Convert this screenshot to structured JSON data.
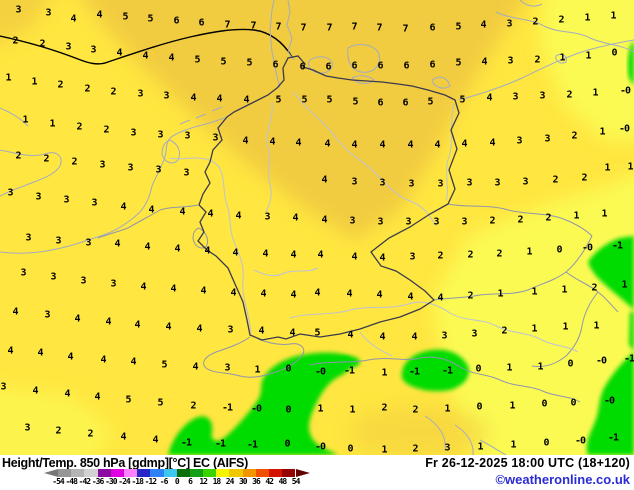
{
  "header": {
    "product": "Height/Temp. 850 hPa [gdmp][°C] EC (AIFS)",
    "valid": "Fr 26-12-2025 18:00 UTC (18+120)",
    "credit": "©weatheronline.co.uk"
  },
  "legend": {
    "labels": [
      "-54",
      "-48",
      "-42",
      "-36",
      "-30",
      "-24",
      "-18",
      "-12",
      "-6",
      "0",
      "6",
      "12",
      "18",
      "24",
      "30",
      "36",
      "42",
      "48",
      "54"
    ],
    "segment_colors": [
      "#969696",
      "#B4B4B4",
      "#D2D2D2",
      "#8C0AA0",
      "#E100E1",
      "#FF82FF",
      "#2828C8",
      "#2E82F5",
      "#3CC8F0",
      "#0A6E0A",
      "#14A014",
      "#3CD200",
      "#F5F500",
      "#F0C800",
      "#F09600",
      "#F05000",
      "#D21400",
      "#960000"
    ],
    "left_arrow_color": "#787878",
    "right_arrow_color": "#640000"
  },
  "map": {
    "palette": {
      "base_yellow": "#FFE640",
      "gold": "#F2CC3F",
      "pale_yellow": "#FBFA52",
      "green": "#00DC00",
      "border_country": "#8F96AD",
      "border_germany": "#3A3A4E",
      "coast": "#A3ABC2",
      "river": "#BCC3D6",
      "contour_black": "#000000"
    },
    "values": [
      [
        18,
        10,
        "3"
      ],
      [
        48,
        13,
        "3"
      ],
      [
        73,
        19,
        "4"
      ],
      [
        99,
        15,
        "4"
      ],
      [
        125,
        17,
        "5"
      ],
      [
        150,
        19,
        "5"
      ],
      [
        176,
        21,
        "6"
      ],
      [
        201,
        23,
        "6"
      ],
      [
        227,
        25,
        "7"
      ],
      [
        253,
        26,
        "7"
      ],
      [
        278,
        27,
        "7"
      ],
      [
        303,
        28,
        "7"
      ],
      [
        329,
        28,
        "7"
      ],
      [
        354,
        27,
        "7"
      ],
      [
        379,
        28,
        "7"
      ],
      [
        405,
        29,
        "7"
      ],
      [
        432,
        28,
        "6"
      ],
      [
        458,
        27,
        "5"
      ],
      [
        483,
        25,
        "4"
      ],
      [
        509,
        24,
        "3"
      ],
      [
        535,
        22,
        "2"
      ],
      [
        561,
        20,
        "2"
      ],
      [
        587,
        18,
        "1"
      ],
      [
        613,
        16,
        "1"
      ],
      [
        15,
        41,
        "2"
      ],
      [
        42,
        44,
        "2"
      ],
      [
        68,
        47,
        "3"
      ],
      [
        93,
        50,
        "3"
      ],
      [
        119,
        53,
        "4"
      ],
      [
        145,
        56,
        "4"
      ],
      [
        171,
        58,
        "4"
      ],
      [
        197,
        60,
        "5"
      ],
      [
        223,
        62,
        "5"
      ],
      [
        249,
        63,
        "5"
      ],
      [
        275,
        65,
        "6"
      ],
      [
        302,
        67,
        "6"
      ],
      [
        328,
        67,
        "6"
      ],
      [
        354,
        66,
        "6"
      ],
      [
        380,
        66,
        "6"
      ],
      [
        406,
        66,
        "6"
      ],
      [
        432,
        65,
        "6"
      ],
      [
        458,
        63,
        "5"
      ],
      [
        484,
        62,
        "4"
      ],
      [
        510,
        61,
        "3"
      ],
      [
        537,
        60,
        "2"
      ],
      [
        562,
        58,
        "1"
      ],
      [
        588,
        56,
        "1"
      ],
      [
        614,
        53,
        "0"
      ],
      [
        8,
        78,
        "1"
      ],
      [
        34,
        82,
        "1"
      ],
      [
        60,
        85,
        "2"
      ],
      [
        87,
        89,
        "2"
      ],
      [
        113,
        92,
        "2"
      ],
      [
        140,
        94,
        "3"
      ],
      [
        166,
        96,
        "3"
      ],
      [
        193,
        98,
        "4"
      ],
      [
        219,
        99,
        "4"
      ],
      [
        246,
        100,
        "4"
      ],
      [
        278,
        100,
        "5"
      ],
      [
        304,
        100,
        "5"
      ],
      [
        329,
        100,
        "5"
      ],
      [
        355,
        102,
        "5"
      ],
      [
        380,
        103,
        "6"
      ],
      [
        405,
        103,
        "6"
      ],
      [
        430,
        102,
        "5"
      ],
      [
        462,
        100,
        "5"
      ],
      [
        489,
        98,
        "4"
      ],
      [
        515,
        97,
        "3"
      ],
      [
        542,
        96,
        "3"
      ],
      [
        569,
        95,
        "2"
      ],
      [
        595,
        93,
        "1"
      ],
      [
        625,
        91,
        "-0"
      ],
      [
        25,
        120,
        "1"
      ],
      [
        52,
        124,
        "1"
      ],
      [
        79,
        127,
        "2"
      ],
      [
        106,
        130,
        "2"
      ],
      [
        133,
        133,
        "3"
      ],
      [
        160,
        135,
        "3"
      ],
      [
        187,
        136,
        "3"
      ],
      [
        215,
        138,
        "3"
      ],
      [
        245,
        141,
        "4"
      ],
      [
        272,
        142,
        "4"
      ],
      [
        298,
        143,
        "4"
      ],
      [
        327,
        144,
        "4"
      ],
      [
        354,
        145,
        "4"
      ],
      [
        382,
        145,
        "4"
      ],
      [
        410,
        145,
        "4"
      ],
      [
        437,
        145,
        "4"
      ],
      [
        464,
        144,
        "4"
      ],
      [
        492,
        143,
        "4"
      ],
      [
        519,
        141,
        "3"
      ],
      [
        547,
        139,
        "3"
      ],
      [
        574,
        136,
        "2"
      ],
      [
        602,
        132,
        "1"
      ],
      [
        624,
        129,
        "-0"
      ],
      [
        18,
        156,
        "2"
      ],
      [
        46,
        159,
        "2"
      ],
      [
        74,
        162,
        "2"
      ],
      [
        102,
        165,
        "3"
      ],
      [
        130,
        168,
        "3"
      ],
      [
        158,
        170,
        "3"
      ],
      [
        186,
        173,
        "3"
      ],
      [
        324,
        180,
        "4"
      ],
      [
        354,
        182,
        "3"
      ],
      [
        382,
        183,
        "3"
      ],
      [
        411,
        184,
        "3"
      ],
      [
        440,
        184,
        "3"
      ],
      [
        469,
        183,
        "3"
      ],
      [
        497,
        183,
        "3"
      ],
      [
        525,
        182,
        "3"
      ],
      [
        555,
        180,
        "2"
      ],
      [
        584,
        178,
        "2"
      ],
      [
        607,
        168,
        "1"
      ],
      [
        630,
        167,
        "1"
      ],
      [
        10,
        193,
        "3"
      ],
      [
        38,
        197,
        "3"
      ],
      [
        66,
        200,
        "3"
      ],
      [
        94,
        203,
        "3"
      ],
      [
        123,
        207,
        "4"
      ],
      [
        151,
        210,
        "4"
      ],
      [
        182,
        212,
        "4"
      ],
      [
        210,
        214,
        "4"
      ],
      [
        238,
        216,
        "4"
      ],
      [
        267,
        217,
        "3"
      ],
      [
        295,
        218,
        "4"
      ],
      [
        324,
        220,
        "4"
      ],
      [
        352,
        221,
        "3"
      ],
      [
        380,
        222,
        "3"
      ],
      [
        408,
        222,
        "3"
      ],
      [
        436,
        222,
        "3"
      ],
      [
        464,
        222,
        "3"
      ],
      [
        492,
        221,
        "2"
      ],
      [
        520,
        220,
        "2"
      ],
      [
        548,
        218,
        "2"
      ],
      [
        576,
        216,
        "1"
      ],
      [
        604,
        214,
        "1"
      ],
      [
        28,
        238,
        "3"
      ],
      [
        58,
        241,
        "3"
      ],
      [
        88,
        243,
        "3"
      ],
      [
        117,
        244,
        "4"
      ],
      [
        147,
        247,
        "4"
      ],
      [
        177,
        249,
        "4"
      ],
      [
        207,
        251,
        "4"
      ],
      [
        235,
        253,
        "4"
      ],
      [
        265,
        254,
        "4"
      ],
      [
        293,
        255,
        "4"
      ],
      [
        320,
        255,
        "4"
      ],
      [
        354,
        257,
        "4"
      ],
      [
        382,
        258,
        "4"
      ],
      [
        412,
        257,
        "3"
      ],
      [
        440,
        256,
        "2"
      ],
      [
        470,
        255,
        "2"
      ],
      [
        499,
        254,
        "2"
      ],
      [
        529,
        252,
        "1"
      ],
      [
        559,
        250,
        "0"
      ],
      [
        587,
        248,
        "-0"
      ],
      [
        617,
        246,
        "-1"
      ],
      [
        23,
        273,
        "3"
      ],
      [
        53,
        277,
        "3"
      ],
      [
        83,
        281,
        "3"
      ],
      [
        113,
        284,
        "3"
      ],
      [
        143,
        287,
        "4"
      ],
      [
        173,
        289,
        "4"
      ],
      [
        203,
        291,
        "4"
      ],
      [
        233,
        293,
        "4"
      ],
      [
        263,
        294,
        "4"
      ],
      [
        293,
        295,
        "4"
      ],
      [
        317,
        293,
        "4"
      ],
      [
        349,
        294,
        "4"
      ],
      [
        379,
        295,
        "4"
      ],
      [
        410,
        297,
        "4"
      ],
      [
        440,
        298,
        "4"
      ],
      [
        470,
        296,
        "2"
      ],
      [
        500,
        294,
        "1"
      ],
      [
        534,
        292,
        "1"
      ],
      [
        564,
        290,
        "1"
      ],
      [
        594,
        288,
        "2"
      ],
      [
        624,
        285,
        "1"
      ],
      [
        15,
        312,
        "4"
      ],
      [
        47,
        315,
        "3"
      ],
      [
        77,
        319,
        "4"
      ],
      [
        108,
        322,
        "4"
      ],
      [
        137,
        325,
        "4"
      ],
      [
        168,
        327,
        "4"
      ],
      [
        199,
        329,
        "4"
      ],
      [
        230,
        330,
        "3"
      ],
      [
        261,
        331,
        "4"
      ],
      [
        292,
        333,
        "4"
      ],
      [
        317,
        333,
        "5"
      ],
      [
        350,
        335,
        "4"
      ],
      [
        382,
        337,
        "4"
      ],
      [
        414,
        337,
        "4"
      ],
      [
        444,
        336,
        "3"
      ],
      [
        474,
        334,
        "3"
      ],
      [
        504,
        331,
        "2"
      ],
      [
        534,
        329,
        "1"
      ],
      [
        565,
        327,
        "1"
      ],
      [
        596,
        326,
        "1"
      ],
      [
        10,
        351,
        "4"
      ],
      [
        40,
        353,
        "4"
      ],
      [
        70,
        357,
        "4"
      ],
      [
        103,
        360,
        "4"
      ],
      [
        133,
        362,
        "4"
      ],
      [
        164,
        365,
        "5"
      ],
      [
        195,
        367,
        "4"
      ],
      [
        227,
        368,
        "3"
      ],
      [
        257,
        370,
        "1"
      ],
      [
        288,
        369,
        "0"
      ],
      [
        320,
        372,
        "-0"
      ],
      [
        349,
        371,
        "-1"
      ],
      [
        384,
        373,
        "1"
      ],
      [
        414,
        372,
        "-1"
      ],
      [
        447,
        371,
        "-1"
      ],
      [
        478,
        369,
        "0"
      ],
      [
        509,
        368,
        "1"
      ],
      [
        540,
        367,
        "1"
      ],
      [
        570,
        364,
        "0"
      ],
      [
        601,
        361,
        "-0"
      ],
      [
        629,
        359,
        "-1"
      ],
      [
        3,
        387,
        "3"
      ],
      [
        35,
        391,
        "4"
      ],
      [
        67,
        394,
        "4"
      ],
      [
        97,
        397,
        "4"
      ],
      [
        128,
        400,
        "5"
      ],
      [
        160,
        403,
        "5"
      ],
      [
        193,
        406,
        "2"
      ],
      [
        227,
        408,
        "-1"
      ],
      [
        256,
        409,
        "-0"
      ],
      [
        288,
        410,
        "0"
      ],
      [
        320,
        409,
        "1"
      ],
      [
        352,
        410,
        "1"
      ],
      [
        384,
        408,
        "2"
      ],
      [
        415,
        410,
        "2"
      ],
      [
        447,
        409,
        "1"
      ],
      [
        479,
        407,
        "0"
      ],
      [
        512,
        406,
        "1"
      ],
      [
        544,
        404,
        "0"
      ],
      [
        573,
        403,
        "0"
      ],
      [
        609,
        401,
        "-0"
      ],
      [
        27,
        428,
        "3"
      ],
      [
        58,
        431,
        "2"
      ],
      [
        90,
        434,
        "2"
      ],
      [
        123,
        437,
        "4"
      ],
      [
        155,
        440,
        "4"
      ],
      [
        186,
        443,
        "-1"
      ],
      [
        220,
        444,
        "-1"
      ],
      [
        252,
        445,
        "-1"
      ],
      [
        287,
        444,
        "0"
      ],
      [
        320,
        447,
        "-0"
      ],
      [
        350,
        449,
        "0"
      ],
      [
        384,
        450,
        "1"
      ],
      [
        415,
        449,
        "2"
      ],
      [
        447,
        448,
        "3"
      ],
      [
        480,
        447,
        "1"
      ],
      [
        513,
        445,
        "1"
      ],
      [
        546,
        443,
        "0"
      ],
      [
        580,
        441,
        "-0"
      ],
      [
        613,
        438,
        "-1"
      ]
    ]
  }
}
